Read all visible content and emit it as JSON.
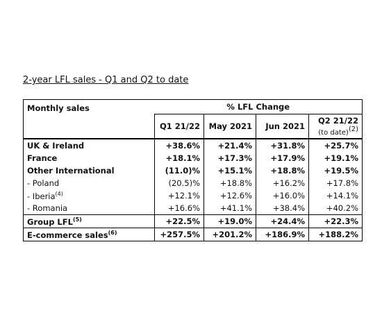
{
  "title": "2-year LFL sales - Q1 and Q2 to date",
  "table": {
    "row_header": "Monthly sales",
    "group_header": "% LFL Change",
    "columns": [
      "Q1 21/22",
      "May 2021",
      "Jun 2021",
      "Q2 21/22"
    ],
    "last_column_sub": "(to date)",
    "last_column_note": "(2)",
    "rows": [
      {
        "label": "UK & Ireland",
        "values": [
          "+38.6%",
          "+21.4%",
          "+31.8%",
          "+25.7%"
        ]
      },
      {
        "label": "France",
        "values": [
          "+18.1%",
          "+17.3%",
          "+17.9%",
          "+19.1%"
        ]
      },
      {
        "label": "Other International",
        "values": [
          "(11.0)%",
          "+15.1%",
          "+18.8%",
          "+19.5%"
        ]
      },
      {
        "label": "- Poland",
        "values": [
          "(20.5)%",
          "+18.8%",
          "+16.2%",
          "+17.8%"
        ]
      },
      {
        "label": "- Iberia",
        "note": "(4)",
        "values": [
          "+12.1%",
          "+12.6%",
          "+16.0%",
          "+14.1%"
        ]
      },
      {
        "label": "- Romania",
        "values": [
          "+16.6%",
          "+41.1%",
          "+38.4%",
          "+40.2%"
        ]
      },
      {
        "label": "Group LFL",
        "note": "(5)",
        "values": [
          "+22.5%",
          "+19.0%",
          "+24.4%",
          "+22.3%"
        ]
      },
      {
        "label": "E-commerce sales",
        "note": "(6)",
        "values": [
          "+257.5%",
          "+201.2%",
          "+186.9%",
          "+188.2%"
        ]
      }
    ]
  }
}
